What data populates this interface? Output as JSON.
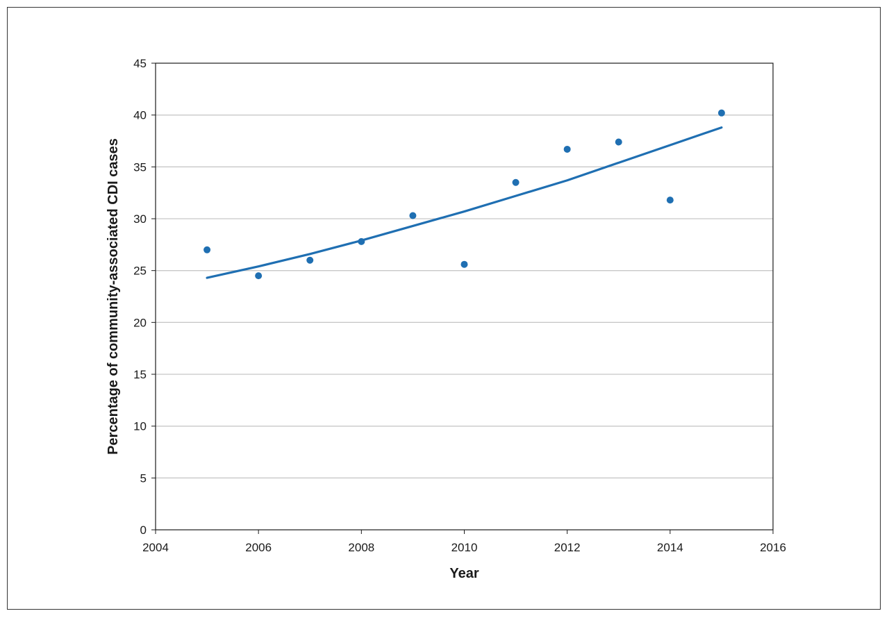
{
  "chart_data": {
    "type": "scatter",
    "title": "",
    "xlabel": "Year",
    "ylabel": "Percentage of community-associated CDI cases",
    "xlim": [
      2004,
      2016
    ],
    "ylim": [
      0,
      45
    ],
    "x_ticks": [
      2004,
      2006,
      2008,
      2010,
      2012,
      2014,
      2016
    ],
    "y_ticks": [
      0,
      5,
      10,
      15,
      20,
      25,
      30,
      35,
      40,
      45
    ],
    "grid": "horizontal",
    "legend": "none",
    "colors": {
      "series": "#1f6fb2",
      "grid": "#c8c8c8",
      "axis": "#1a1a1a"
    },
    "series": [
      {
        "type": "scatter",
        "x": [
          2005,
          2006,
          2007,
          2008,
          2009,
          2010,
          2011,
          2012,
          2013,
          2014,
          2015
        ],
        "y": [
          27.0,
          24.5,
          26.0,
          27.8,
          30.3,
          25.6,
          33.5,
          36.7,
          37.4,
          31.8,
          40.2
        ]
      },
      {
        "type": "line",
        "x": [
          2005,
          2006,
          2007,
          2008,
          2009,
          2010,
          2011,
          2012,
          2013,
          2014,
          2015
        ],
        "y": [
          24.3,
          25.4,
          26.6,
          27.9,
          29.3,
          30.7,
          32.2,
          33.7,
          35.4,
          37.1,
          38.8
        ]
      }
    ]
  }
}
